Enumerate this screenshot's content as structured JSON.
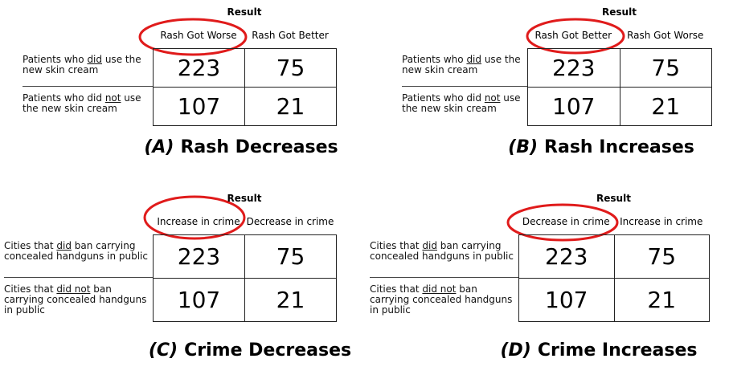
{
  "panels": [
    {
      "result": "Result",
      "columns": [
        "Rash Got Worse",
        "Rash Got Better"
      ],
      "rows": [
        {
          "label": [
            "Patients who ",
            "did",
            " use the new skin cream"
          ],
          "cells": [
            "223",
            "75"
          ]
        },
        {
          "label": [
            "Patients who did ",
            "not",
            " use the new skin cream"
          ],
          "cells": [
            "107",
            "21"
          ]
        }
      ],
      "caption": {
        "letter": "(A)",
        "text": "Rash Decreases"
      }
    },
    {
      "result": "Result",
      "columns": [
        "Rash Got Better",
        "Rash Got Worse"
      ],
      "rows": [
        {
          "label": [
            "Patients who ",
            "did",
            " use the new skin cream"
          ],
          "cells": [
            "223",
            "75"
          ]
        },
        {
          "label": [
            "Patients who did ",
            "not",
            " use the new skin cream"
          ],
          "cells": [
            "107",
            "21"
          ]
        }
      ],
      "caption": {
        "letter": "(B)",
        "text": "Rash  Increases"
      }
    },
    {
      "result": "Result",
      "columns": [
        "Increase in crime",
        "Decrease in crime"
      ],
      "rows": [
        {
          "label": [
            "Cities that ",
            "did",
            " ban carrying concealed handguns in public"
          ],
          "cells": [
            "223",
            "75"
          ]
        },
        {
          "label": [
            "Cities that ",
            "did not",
            " ban carrying concealed handguns in public"
          ],
          "cells": [
            "107",
            "21"
          ]
        }
      ],
      "caption": {
        "letter": "(C)",
        "text": "Crime  Decreases"
      }
    },
    {
      "result": "Result",
      "columns": [
        "Decrease in crime",
        "Increase in crime"
      ],
      "rows": [
        {
          "label": [
            "Cities that ",
            "did",
            " ban carrying concealed handguns in public"
          ],
          "cells": [
            "223",
            "75"
          ]
        },
        {
          "label": [
            "Cities that ",
            "did not",
            " ban carrying concealed handguns in public"
          ],
          "cells": [
            "107",
            "21"
          ]
        }
      ],
      "caption": {
        "letter": "(D)",
        "text": "Crime Increases"
      }
    }
  ]
}
